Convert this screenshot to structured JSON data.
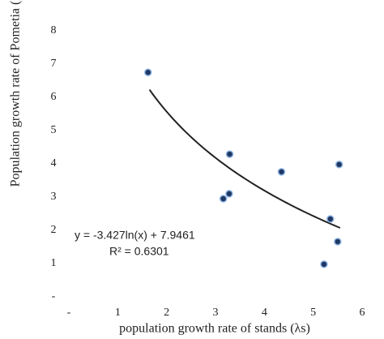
{
  "chart_data": {
    "type": "scatter",
    "x_label": "population growth rate of stands (λs)",
    "y_label": "Population growth rate of Pometia (λp)",
    "x": [
      1.62,
      3.29,
      3.16,
      3.28,
      4.35,
      5.53,
      5.35,
      5.5,
      5.22
    ],
    "values": [
      6.75,
      4.29,
      2.95,
      3.1,
      3.76,
      3.98,
      2.34,
      1.66,
      0.98
    ],
    "color": "#1f3864",
    "edge_color": "#8fb4e3",
    "xlim": [
      0,
      6
    ],
    "xticks": [
      {
        "value": 0,
        "label": "-"
      },
      1,
      2,
      3,
      4,
      5,
      6
    ],
    "ylim": [
      0,
      8
    ],
    "yticks": [
      {
        "value": 0,
        "label": "-"
      },
      1,
      2,
      3,
      4,
      5,
      6,
      7,
      8
    ],
    "grid": false,
    "trendline": {
      "equation": "y = -3.427ln(x) + 7.9461",
      "r2_label": "R² = 0.6301",
      "r2": 0.6301,
      "slope": -3.427,
      "intercept": 7.9461,
      "x_range": [
        1.65,
        5.55
      ],
      "color": "#222222"
    }
  }
}
